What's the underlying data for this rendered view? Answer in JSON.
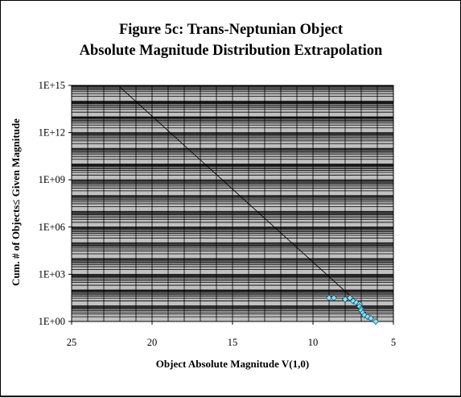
{
  "chart_data": {
    "type": "scatter",
    "title_lines": [
      "Figure 5c:  Trans-Neptunian Object",
      "Absolute Magnitude Distribution Extrapolation"
    ],
    "xlabel": "Object Absolute Magnitude V(1,0)",
    "ylabel": "Cum. # of Objects≤ Given Magnitude",
    "x_axis": {
      "min": 5,
      "max": 25,
      "reversed": true,
      "ticks": [
        25,
        20,
        15,
        10,
        5
      ]
    },
    "y_axis": {
      "scale": "log",
      "min_exp": 0,
      "max_exp": 15,
      "ticks": [
        {
          "exp": 0,
          "label": "1E+00"
        },
        {
          "exp": 3,
          "label": "1E+03"
        },
        {
          "exp": 6,
          "label": "1E+06"
        },
        {
          "exp": 9,
          "label": "1E+09"
        },
        {
          "exp": 12,
          "label": "1E+12"
        },
        {
          "exp": 15,
          "label": "1E+15"
        }
      ]
    },
    "grid": true,
    "legend": "none",
    "colors": {
      "plot_bg": "#c0c0c0",
      "grid": "#000000",
      "marker_fill": "#7fe6ea",
      "marker_stroke": "#1a3a6a",
      "line": "#000000"
    },
    "series": [
      {
        "type": "scatter",
        "points": [
          {
            "x": 9.0,
            "y": 1.5
          },
          {
            "x": 8.7,
            "y": 1.5
          },
          {
            "x": 8.0,
            "y": 1.4
          },
          {
            "x": 7.7,
            "y": 1.5
          },
          {
            "x": 7.5,
            "y": 1.3
          },
          {
            "x": 7.3,
            "y": 1.2
          },
          {
            "x": 7.1,
            "y": 1.1
          },
          {
            "x": 7.1,
            "y": 0.95
          },
          {
            "x": 7.0,
            "y": 0.8
          },
          {
            "x": 7.0,
            "y": 0.7
          },
          {
            "x": 6.9,
            "y": 0.55
          },
          {
            "x": 6.8,
            "y": 0.4
          },
          {
            "x": 6.6,
            "y": 0.3
          },
          {
            "x": 6.4,
            "y": 0.2
          },
          {
            "x": 6.1,
            "y": 0.0
          }
        ]
      },
      {
        "type": "line",
        "points": [
          {
            "x": 22.0,
            "y": 14.9
          },
          {
            "x": 6.9,
            "y": 0.9
          }
        ]
      }
    ]
  }
}
